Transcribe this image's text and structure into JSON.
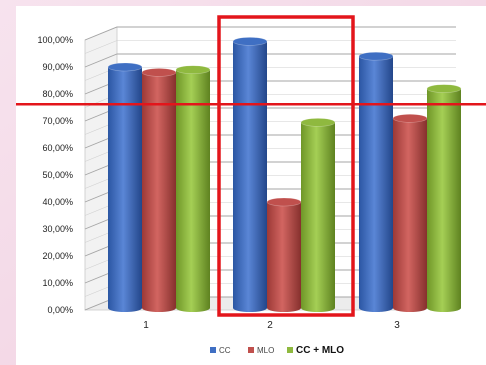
{
  "chart_data": {
    "type": "bar",
    "categories": [
      "1",
      "2",
      "3"
    ],
    "series": [
      {
        "name": "CC",
        "values": [
          90.0,
          99.5,
          94.0
        ]
      },
      {
        "name": "MLO",
        "values": [
          88.0,
          40.0,
          71.0
        ]
      },
      {
        "name": "CC + MLO",
        "values": [
          89.0,
          69.5,
          82.0
        ]
      }
    ],
    "y_tick_labels": [
      "0,00%",
      "10,00%",
      "20,00%",
      "30,00%",
      "40,00%",
      "50,00%",
      "60,00%",
      "70,00%",
      "80,00%",
      "90,00%",
      "100,00%"
    ],
    "ylim": [
      0,
      100
    ],
    "grid": true,
    "legend_position": "bottom",
    "colors": {
      "CC": "#3f6fc3",
      "MLO": "#c0504d",
      "CC + MLO": "#8fb93f",
      "highlight": "#e3151b"
    },
    "annotations": {
      "highlight_box_category": "2",
      "highlight_line_value": 74
    }
  }
}
